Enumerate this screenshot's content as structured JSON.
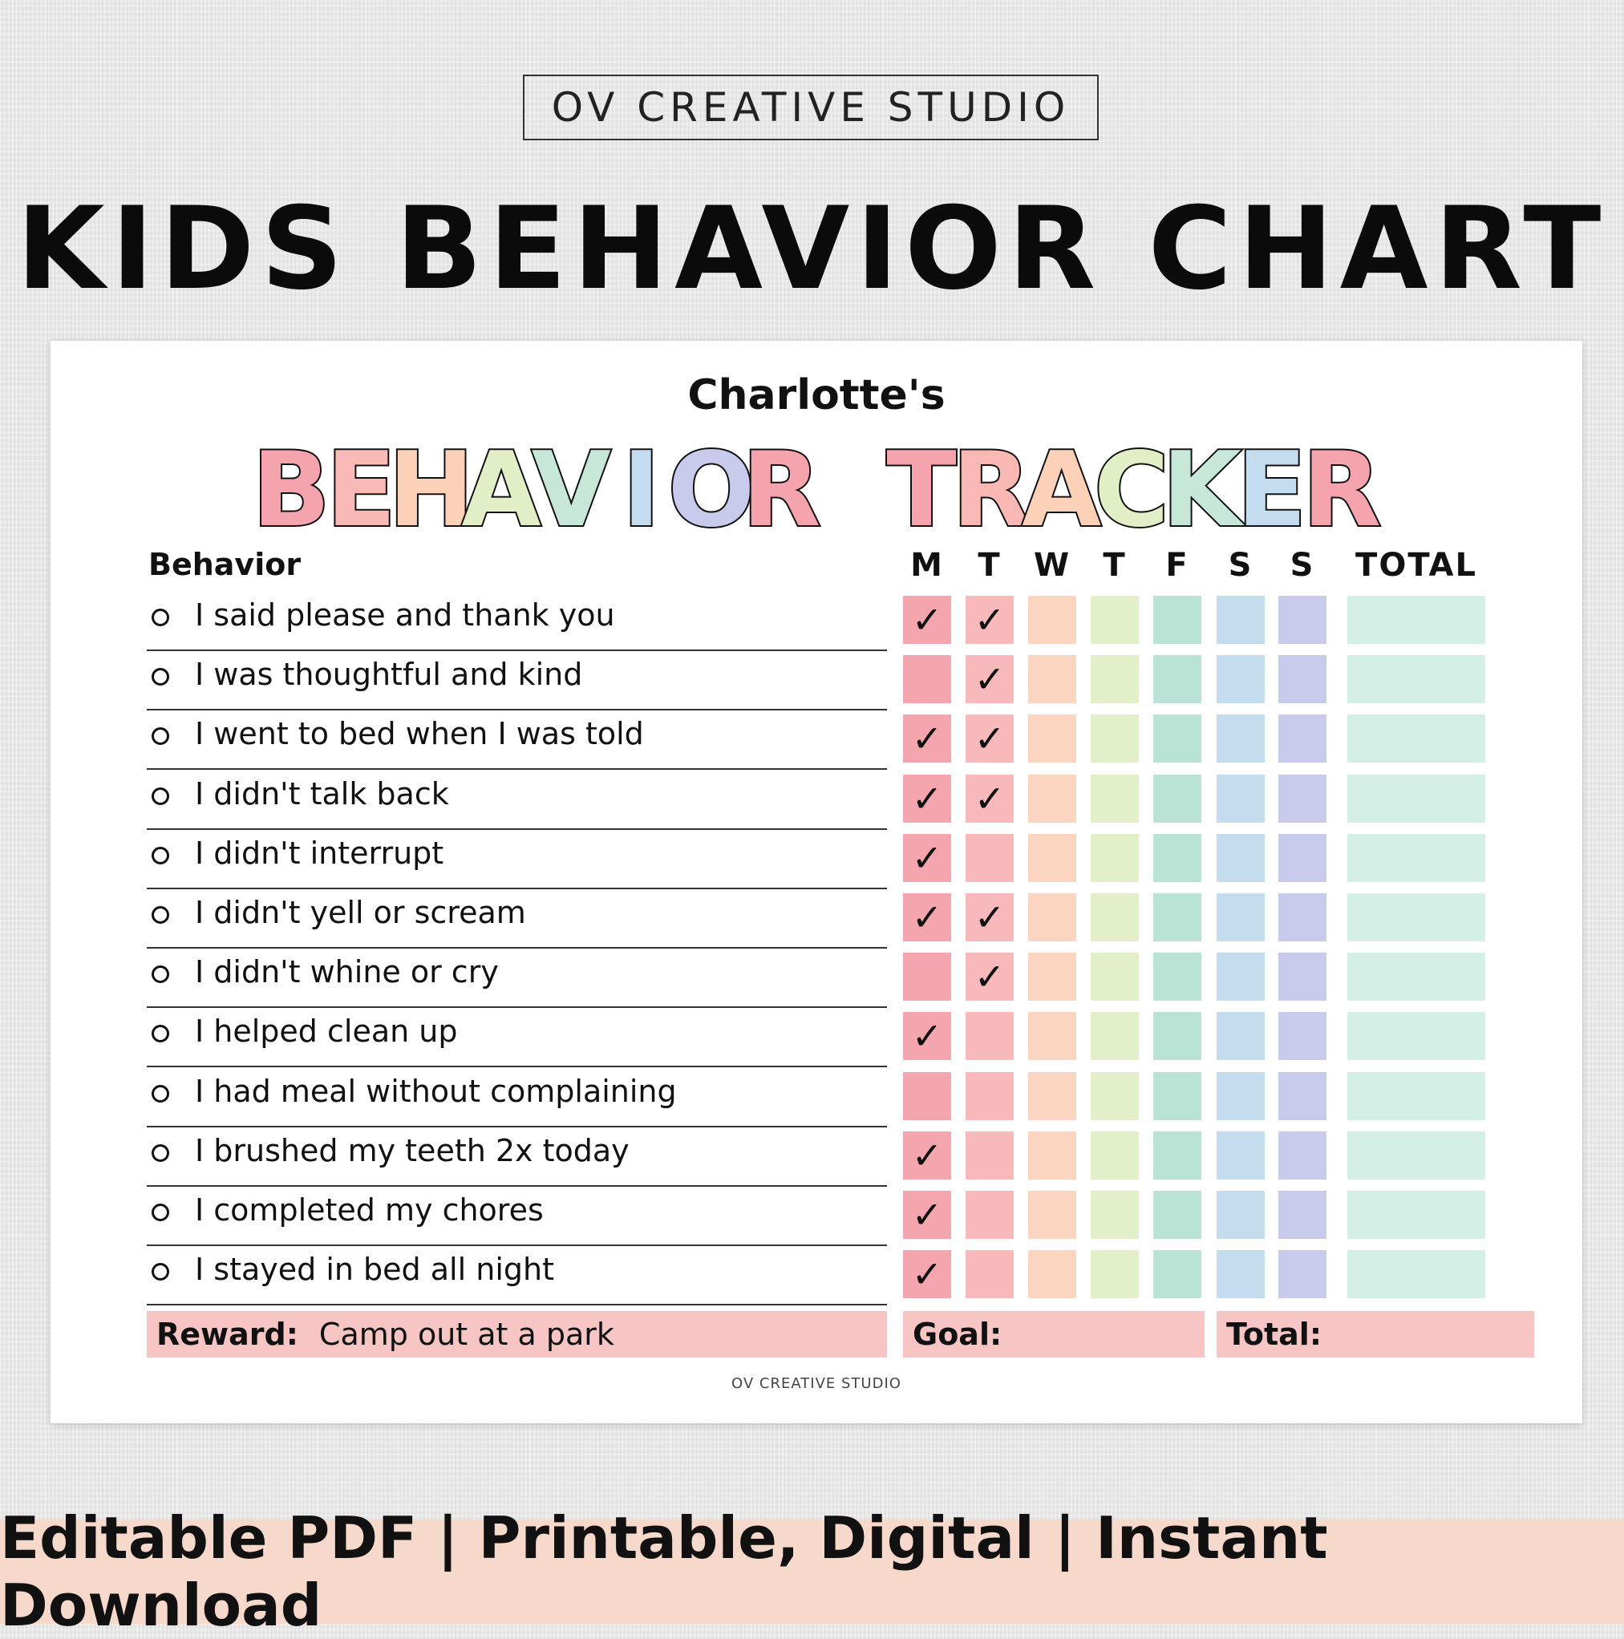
{
  "studio_label": "OV CREATIVE STUDIO",
  "main_title": "KIDS BEHAVIOR CHART",
  "sheet": {
    "owner_name": "Charlotte's",
    "tracker_title": "BEHAVIOR TRACKER",
    "behavior_header": "Behavior",
    "days": [
      "M",
      "T",
      "W",
      "T",
      "F",
      "S",
      "S"
    ],
    "total_header": "TOTAL",
    "day_colors": [
      "#f4a5ad",
      "#f7b9b9",
      "#fbd5bf",
      "#e3efc8",
      "#b9e3d5",
      "#c3ddee",
      "#c8cbec"
    ],
    "total_color": "#d4efe6",
    "check_glyph": "✓",
    "behaviors": [
      {
        "label": "I said please and thank you",
        "checks": [
          true,
          true,
          false,
          false,
          false,
          false,
          false
        ]
      },
      {
        "label": "I was thoughtful and kind",
        "checks": [
          false,
          true,
          false,
          false,
          false,
          false,
          false
        ]
      },
      {
        "label": "I went to bed when I was told",
        "checks": [
          true,
          true,
          false,
          false,
          false,
          false,
          false
        ]
      },
      {
        "label": "I didn't talk back",
        "checks": [
          true,
          true,
          false,
          false,
          false,
          false,
          false
        ]
      },
      {
        "label": "I didn't interrupt",
        "checks": [
          true,
          false,
          false,
          false,
          false,
          false,
          false
        ]
      },
      {
        "label": "I didn't yell or scream",
        "checks": [
          true,
          true,
          false,
          false,
          false,
          false,
          false
        ]
      },
      {
        "label": "I didn't whine or cry",
        "checks": [
          false,
          true,
          false,
          false,
          false,
          false,
          false
        ]
      },
      {
        "label": "I helped clean up",
        "checks": [
          true,
          false,
          false,
          false,
          false,
          false,
          false
        ]
      },
      {
        "label": "I had meal without complaining",
        "checks": [
          false,
          false,
          false,
          false,
          false,
          false,
          false
        ]
      },
      {
        "label": "I brushed my teeth 2x today",
        "checks": [
          true,
          false,
          false,
          false,
          false,
          false,
          false
        ]
      },
      {
        "label": "I completed my chores",
        "checks": [
          true,
          false,
          false,
          false,
          false,
          false,
          false
        ]
      },
      {
        "label": "I stayed in bed all night",
        "checks": [
          true,
          false,
          false,
          false,
          false,
          false,
          false
        ]
      }
    ],
    "reward_label": "Reward:",
    "reward_value": "Camp out at a park",
    "goal_label": "Goal:",
    "total_label": "Total:",
    "footer_credit": "OV CREATIVE STUDIO"
  },
  "banner_text": "Editable PDF | Printable, Digital | Instant Download"
}
